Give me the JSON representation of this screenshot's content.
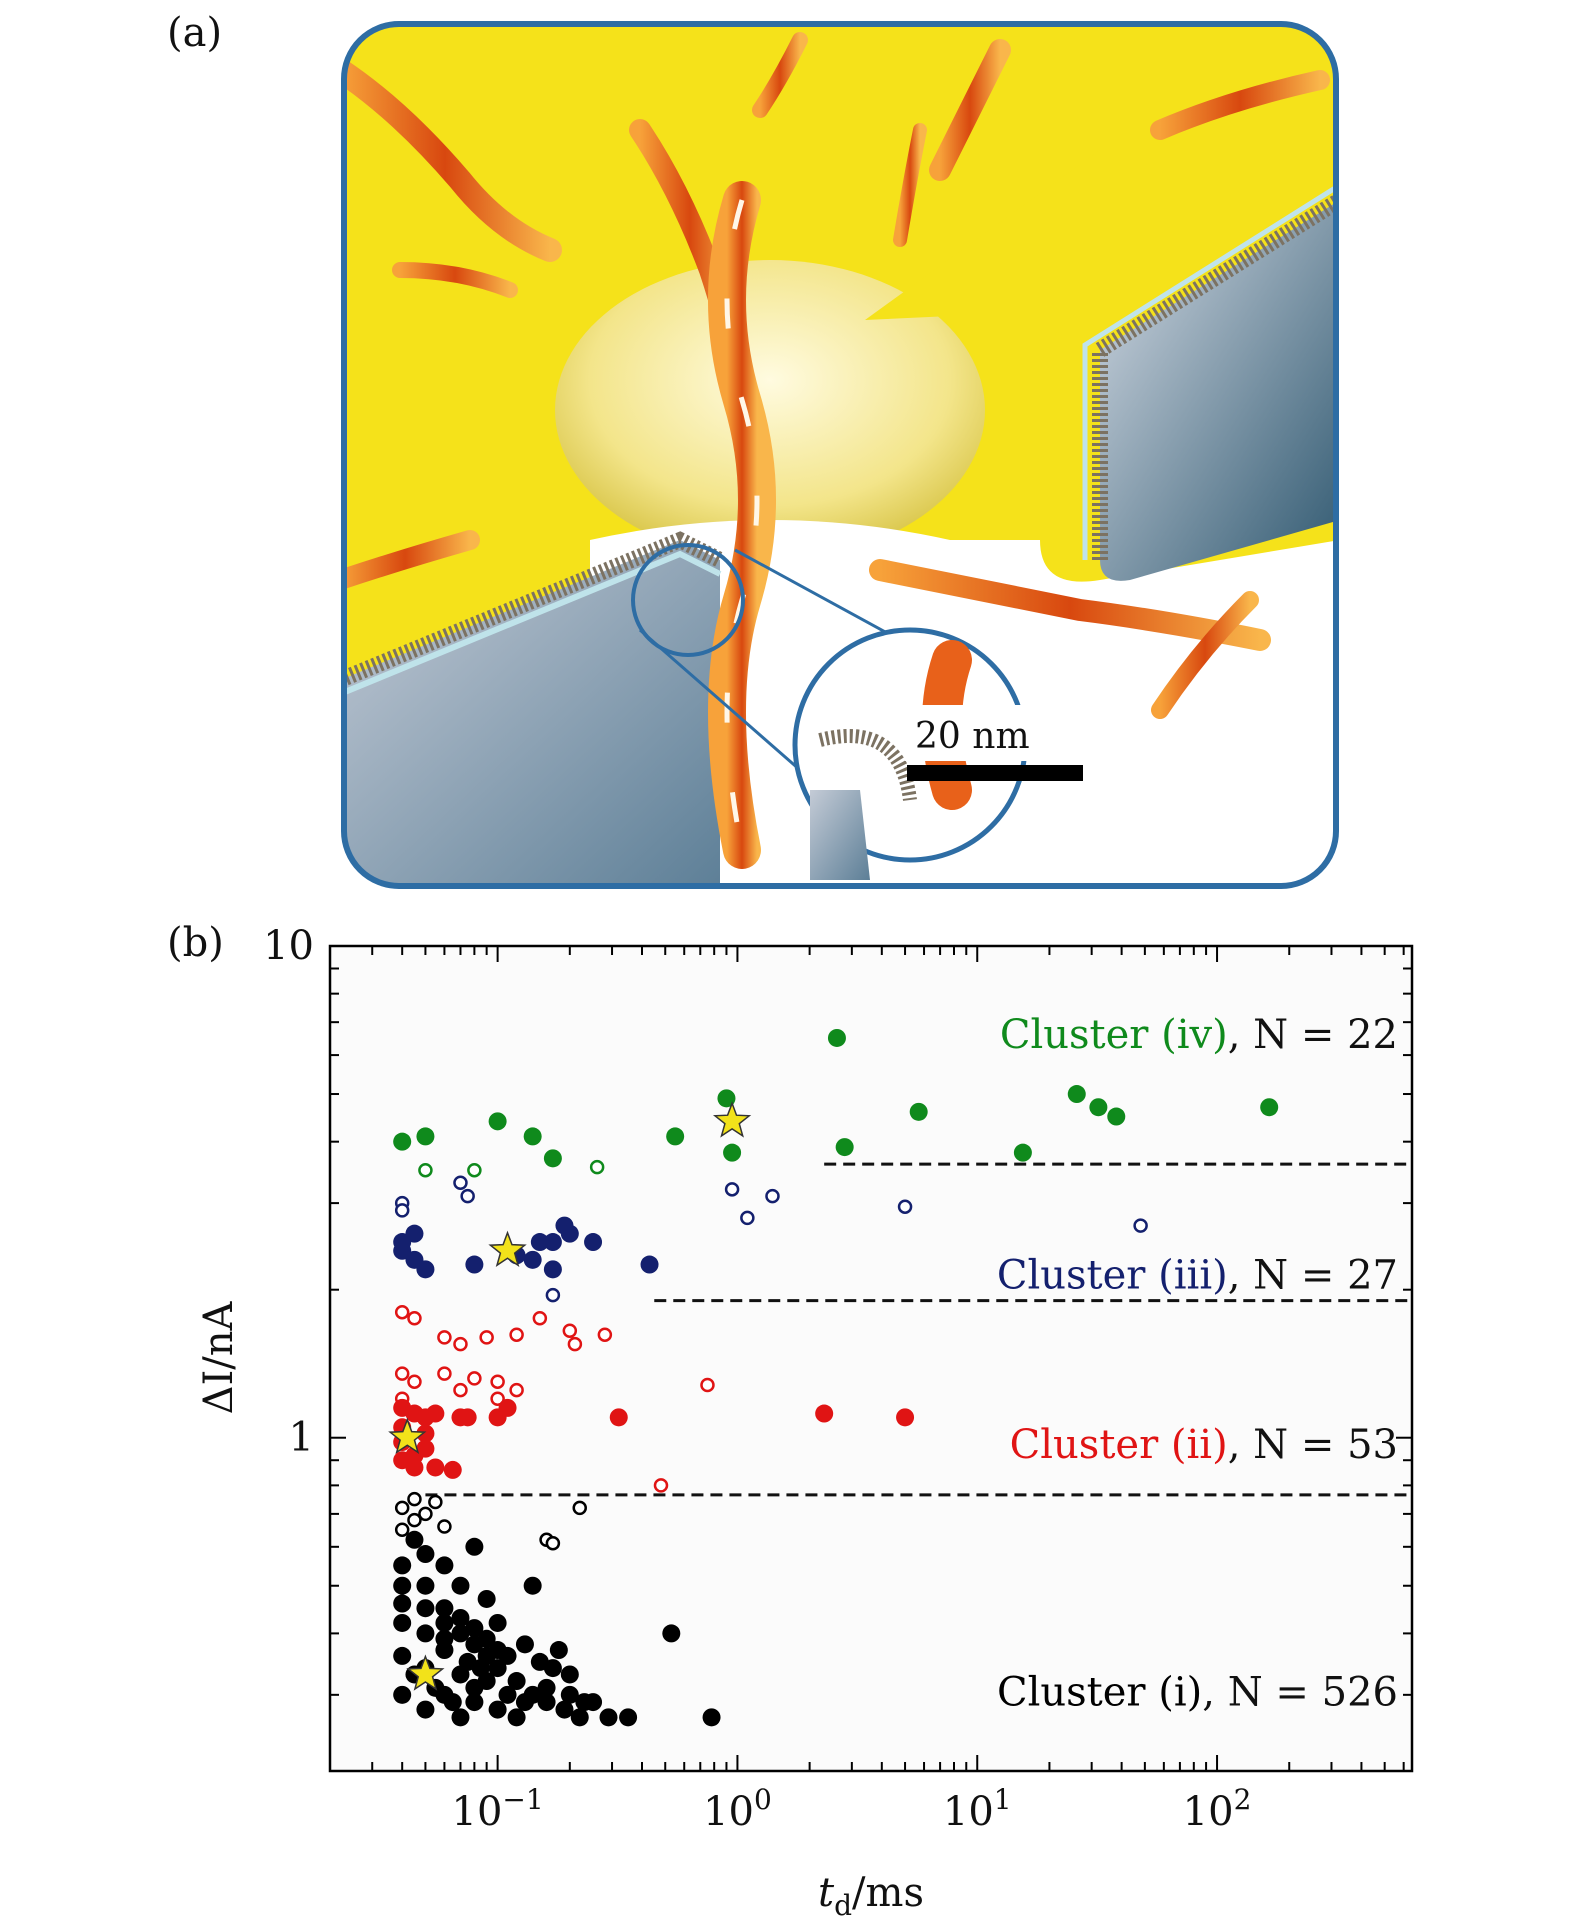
{
  "panels": {
    "a_label": "(a)",
    "b_label": "(b)"
  },
  "illustration": {
    "scale_bar_label": "20 nm",
    "colors": {
      "membrane": "#f5e21a",
      "frame": "#2e6da4",
      "fibril": "#e8611a",
      "substrate": "#6f8fa5"
    }
  },
  "chart_data": {
    "type": "scatter",
    "x_scale": "log",
    "y_scale": "log",
    "xlim": [
      0.02,
      650
    ],
    "ylim": [
      0.21,
      10
    ],
    "xlabel": "t_d/ms",
    "ylabel": "ΔI/nA",
    "x_ticks": [
      {
        "value": 0.1,
        "base": "10",
        "exp": "−1"
      },
      {
        "value": 1,
        "base": "10",
        "exp": "0"
      },
      {
        "value": 10,
        "base": "10",
        "exp": "1"
      },
      {
        "value": 100,
        "base": "10",
        "exp": "2"
      }
    ],
    "y_ticks": [
      {
        "value": 1,
        "label": "1"
      },
      {
        "value": 10,
        "label": "10"
      }
    ],
    "thresholds": [
      {
        "y": 0.765,
        "x_start": 0.05
      },
      {
        "y": 1.9,
        "x_start": 0.45
      },
      {
        "y": 3.6,
        "x_start": 2.3
      }
    ],
    "series": [
      {
        "name": "Cluster (iv)",
        "count_label": "N = 22",
        "color": "#0f8a1c",
        "filled": [
          [
            0.04,
            4.0
          ],
          [
            0.05,
            4.1
          ],
          [
            0.1,
            4.4
          ],
          [
            0.14,
            4.1
          ],
          [
            0.17,
            3.7
          ],
          [
            0.55,
            4.1
          ],
          [
            0.9,
            4.9
          ],
          [
            0.95,
            3.8
          ],
          [
            2.6,
            6.5
          ],
          [
            2.8,
            3.9
          ],
          [
            5.7,
            4.6
          ],
          [
            15.5,
            3.8
          ],
          [
            26,
            5.0
          ],
          [
            32,
            4.7
          ],
          [
            38,
            4.5
          ],
          [
            165,
            4.7
          ]
        ],
        "open": [
          [
            0.05,
            3.5
          ],
          [
            0.08,
            3.5
          ],
          [
            0.26,
            3.55
          ]
        ],
        "stars": [
          [
            0.95,
            4.4
          ]
        ]
      },
      {
        "name": "Cluster (iii)",
        "count_label": "N = 27",
        "color": "#14206e",
        "filled": [
          [
            0.04,
            2.5
          ],
          [
            0.045,
            2.6
          ],
          [
            0.04,
            2.4
          ],
          [
            0.045,
            2.3
          ],
          [
            0.05,
            2.2
          ],
          [
            0.08,
            2.25
          ],
          [
            0.12,
            2.35
          ],
          [
            0.14,
            2.3
          ],
          [
            0.15,
            2.5
          ],
          [
            0.17,
            2.5
          ],
          [
            0.17,
            2.2
          ],
          [
            0.19,
            2.7
          ],
          [
            0.2,
            2.6
          ],
          [
            0.25,
            2.5
          ],
          [
            0.43,
            2.25
          ]
        ],
        "open": [
          [
            0.04,
            3.0
          ],
          [
            0.04,
            2.9
          ],
          [
            0.07,
            3.3
          ],
          [
            0.075,
            3.1
          ],
          [
            0.17,
            1.95
          ],
          [
            0.95,
            3.2
          ],
          [
            1.1,
            2.8
          ],
          [
            1.4,
            3.1
          ],
          [
            5.0,
            2.95
          ],
          [
            48,
            2.7
          ]
        ],
        "stars": [
          [
            0.11,
            2.4
          ]
        ]
      },
      {
        "name": "Cluster (ii)",
        "count_label": "N = 53",
        "color": "#e01414",
        "filled": [
          [
            0.04,
            1.15
          ],
          [
            0.045,
            1.12
          ],
          [
            0.05,
            1.1
          ],
          [
            0.055,
            1.12
          ],
          [
            0.04,
            1.05
          ],
          [
            0.05,
            1.02
          ],
          [
            0.04,
            0.98
          ],
          [
            0.05,
            0.95
          ],
          [
            0.045,
            0.92
          ],
          [
            0.04,
            0.9
          ],
          [
            0.045,
            0.87
          ],
          [
            0.055,
            0.87
          ],
          [
            0.065,
            0.86
          ],
          [
            0.07,
            1.1
          ],
          [
            0.075,
            1.1
          ],
          [
            0.1,
            1.1
          ],
          [
            0.11,
            1.15
          ],
          [
            0.32,
            1.1
          ],
          [
            2.3,
            1.12
          ],
          [
            5.0,
            1.1
          ]
        ],
        "open": [
          [
            0.04,
            1.8
          ],
          [
            0.045,
            1.75
          ],
          [
            0.06,
            1.6
          ],
          [
            0.07,
            1.55
          ],
          [
            0.09,
            1.6
          ],
          [
            0.12,
            1.62
          ],
          [
            0.15,
            1.75
          ],
          [
            0.2,
            1.65
          ],
          [
            0.21,
            1.55
          ],
          [
            0.28,
            1.62
          ],
          [
            0.04,
            1.35
          ],
          [
            0.045,
            1.3
          ],
          [
            0.06,
            1.35
          ],
          [
            0.07,
            1.25
          ],
          [
            0.08,
            1.32
          ],
          [
            0.1,
            1.3
          ],
          [
            0.12,
            1.25
          ],
          [
            0.04,
            1.2
          ],
          [
            0.1,
            1.2
          ],
          [
            0.75,
            1.28
          ],
          [
            0.48,
            0.8
          ]
        ],
        "stars": [
          [
            0.042,
            1.0
          ]
        ]
      },
      {
        "name": "Cluster (i)",
        "count_label": "N = 526",
        "color": "#000000",
        "filled": [
          [
            0.04,
            0.5
          ],
          [
            0.05,
            0.45
          ],
          [
            0.06,
            0.42
          ],
          [
            0.07,
            0.4
          ],
          [
            0.08,
            0.38
          ],
          [
            0.09,
            0.36
          ],
          [
            0.1,
            0.34
          ],
          [
            0.12,
            0.32
          ],
          [
            0.14,
            0.3
          ],
          [
            0.16,
            0.29
          ],
          [
            0.19,
            0.28
          ],
          [
            0.22,
            0.27
          ],
          [
            0.25,
            0.29
          ],
          [
            0.29,
            0.27
          ],
          [
            0.17,
            0.34
          ],
          [
            0.2,
            0.33
          ],
          [
            0.13,
            0.38
          ],
          [
            0.1,
            0.42
          ],
          [
            0.09,
            0.47
          ],
          [
            0.07,
            0.5
          ],
          [
            0.06,
            0.55
          ],
          [
            0.08,
            0.6
          ],
          [
            0.53,
            0.4
          ],
          [
            0.78,
            0.27
          ],
          [
            0.04,
            0.3
          ],
          [
            0.05,
            0.28
          ],
          [
            0.06,
            0.3
          ],
          [
            0.07,
            0.27
          ],
          [
            0.08,
            0.29
          ],
          [
            0.1,
            0.28
          ],
          [
            0.12,
            0.27
          ],
          [
            0.04,
            0.36
          ],
          [
            0.05,
            0.34
          ],
          [
            0.06,
            0.37
          ],
          [
            0.07,
            0.33
          ],
          [
            0.08,
            0.31
          ],
          [
            0.04,
            0.42
          ],
          [
            0.05,
            0.4
          ],
          [
            0.06,
            0.39
          ],
          [
            0.04,
            0.46
          ],
          [
            0.05,
            0.5
          ],
          [
            0.04,
            0.55
          ],
          [
            0.05,
            0.58
          ],
          [
            0.045,
            0.62
          ],
          [
            0.14,
            0.5
          ],
          [
            0.11,
            0.36
          ],
          [
            0.15,
            0.35
          ],
          [
            0.18,
            0.37
          ],
          [
            0.09,
            0.32
          ],
          [
            0.11,
            0.3
          ],
          [
            0.13,
            0.29
          ],
          [
            0.16,
            0.31
          ],
          [
            0.2,
            0.3
          ],
          [
            0.23,
            0.29
          ],
          [
            0.35,
            0.27
          ],
          [
            0.06,
            0.45
          ],
          [
            0.07,
            0.43
          ],
          [
            0.08,
            0.41
          ],
          [
            0.09,
            0.39
          ],
          [
            0.1,
            0.37
          ],
          [
            0.045,
            0.33
          ],
          [
            0.055,
            0.31
          ],
          [
            0.065,
            0.29
          ],
          [
            0.075,
            0.35
          ],
          [
            0.085,
            0.34
          ]
        ],
        "open": [
          [
            0.04,
            0.65
          ],
          [
            0.045,
            0.68
          ],
          [
            0.04,
            0.72
          ],
          [
            0.05,
            0.7
          ],
          [
            0.045,
            0.75
          ],
          [
            0.055,
            0.74
          ],
          [
            0.06,
            0.66
          ],
          [
            0.16,
            0.62
          ],
          [
            0.17,
            0.61
          ],
          [
            0.22,
            0.72
          ]
        ],
        "stars": [
          [
            0.05,
            0.33
          ]
        ]
      }
    ],
    "star_color": "#f2e21a"
  }
}
